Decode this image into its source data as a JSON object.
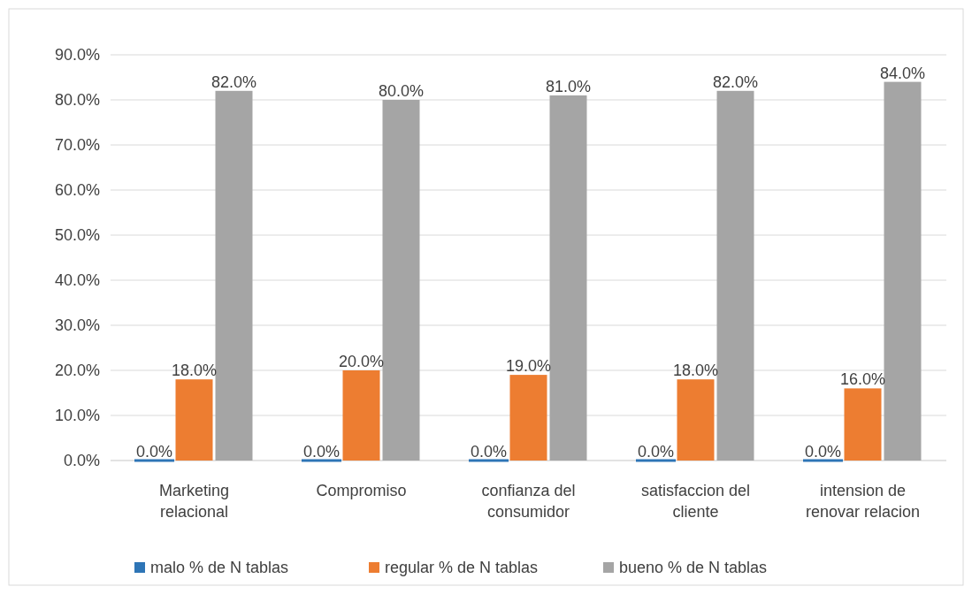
{
  "chart_data": {
    "type": "bar",
    "categories": [
      "Marketing relacional",
      "Compromiso",
      "confianza del consumidor",
      "satisfaccion del cliente",
      "intension de renovar relacion"
    ],
    "series": [
      {
        "name": "malo % de N tablas",
        "color": "#2e75b6",
        "values": [
          0,
          0,
          0,
          0,
          0
        ],
        "value_labels": [
          "0.0%",
          "0.0%",
          "0.0%",
          "0.0%",
          "0.0%"
        ]
      },
      {
        "name": "regular % de N tablas",
        "color": "#ed7d31",
        "values": [
          18,
          20,
          19,
          18,
          16
        ],
        "value_labels": [
          "18.0%",
          "20.0%",
          "19.0%",
          "18.0%",
          "16.0%"
        ]
      },
      {
        "name": "bueno % de N tablas",
        "color": "#a5a5a5",
        "values": [
          82,
          80,
          81,
          82,
          84
        ],
        "value_labels": [
          "82.0%",
          "80.0%",
          "81.0%",
          "82.0%",
          "84.0%"
        ]
      }
    ],
    "ylim": [
      0,
      90
    ],
    "yticks": [
      {
        "value": 0,
        "label": "0.0%"
      },
      {
        "value": 10,
        "label": "10.0%"
      },
      {
        "value": 20,
        "label": "20.0%"
      },
      {
        "value": 30,
        "label": "30.0%"
      },
      {
        "value": 40,
        "label": "40.0%"
      },
      {
        "value": 50,
        "label": "50.0%"
      },
      {
        "value": 60,
        "label": "60.0%"
      },
      {
        "value": 70,
        "label": "70.0%"
      },
      {
        "value": 80,
        "label": "80.0%"
      },
      {
        "value": 90,
        "label": "90.0%"
      }
    ],
    "grid": "y",
    "legend": "bottom"
  }
}
